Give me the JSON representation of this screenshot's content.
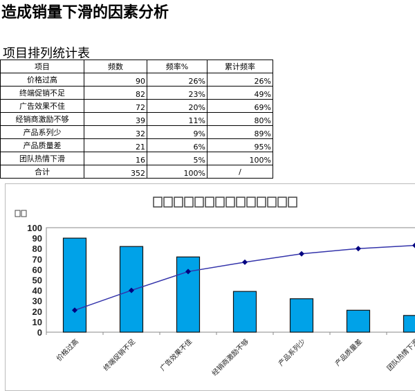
{
  "page_title": "造成销量下滑的因素分析",
  "table_title": "项目排列统计表",
  "table": {
    "headers": [
      "项目",
      "频数",
      "频率%",
      "累计频率"
    ],
    "rows": [
      [
        "价格过高",
        "90",
        "26%",
        "26%"
      ],
      [
        "终端促销不足",
        "82",
        "23%",
        "49%"
      ],
      [
        "广告效果不佳",
        "72",
        "20%",
        "69%"
      ],
      [
        "经销商激励不够",
        "39",
        "11%",
        "80%"
      ],
      [
        "产品系列少",
        "32",
        "9%",
        "89%"
      ],
      [
        "产品质量差",
        "21",
        "6%",
        "95%"
      ],
      [
        "团队热情下滑",
        "16",
        "5%",
        "100%"
      ]
    ],
    "total": [
      "合计",
      "352",
      "100%",
      "/"
    ]
  },
  "chart_data": {
    "type": "bar",
    "title": "",
    "categories": [
      "价格过高",
      "终端促销不足",
      "广告效果不佳",
      "经销商激励不够",
      "产品系列少",
      "产品质量差",
      "团队热情下滑"
    ],
    "series": [
      {
        "type": "bar",
        "values": [
          90,
          82,
          72,
          39,
          32,
          21,
          16
        ],
        "color": "#00a2e8"
      },
      {
        "type": "line",
        "values": [
          21,
          40,
          58,
          67,
          75,
          80,
          83
        ],
        "color": "#000080"
      }
    ],
    "yticks": [
      "0",
      "10",
      "20",
      "30",
      "40",
      "50",
      "60",
      "70",
      "80",
      "90",
      "100"
    ],
    "ylim": [
      0,
      100
    ],
    "grid": false,
    "note": "title and y-axis label render as missing-glyph boxes"
  }
}
